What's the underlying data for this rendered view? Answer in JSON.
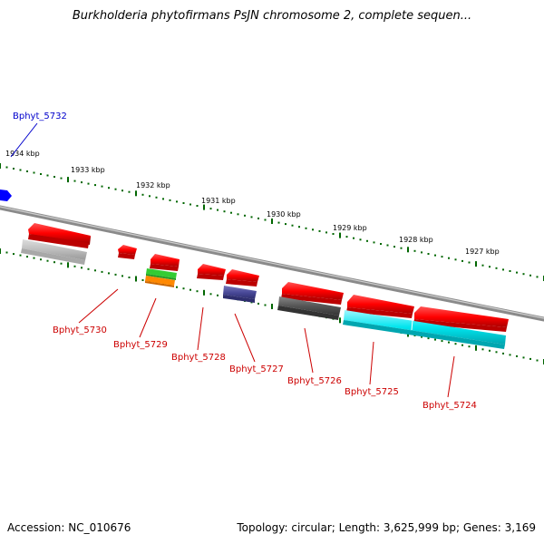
{
  "title": "Burkholderia phytofirmans PsJN chromosome 2, complete sequen...",
  "footer": {
    "accession": "Accession: NC_010676",
    "summary": "Topology: circular; Length: 3,625,999 bp; Genes: 3,169"
  },
  "scale": {
    "tick_labels": [
      "1934 kbp",
      "1933 kbp",
      "1932 kbp",
      "1931 kbp",
      "1930 kbp",
      "1929 kbp",
      "1928 kbp",
      "1927 kbp"
    ]
  },
  "genes": [
    {
      "name": "Bphyt_5732",
      "color": "#0000cc"
    },
    {
      "name": "Bphyt_5730",
      "color": "#cc0000"
    },
    {
      "name": "Bphyt_5729",
      "color": "#cc0000"
    },
    {
      "name": "Bphyt_5728",
      "color": "#cc0000"
    },
    {
      "name": "Bphyt_5727",
      "color": "#cc0000"
    },
    {
      "name": "Bphyt_5726",
      "color": "#cc0000"
    },
    {
      "name": "Bphyt_5725",
      "color": "#cc0000"
    },
    {
      "name": "Bphyt_5724",
      "color": "#cc0000"
    }
  ],
  "colors": {
    "backbone": "#888888",
    "cds_forward": "#ff0000",
    "blue_feature": "#0000ff",
    "tick_green": "#006600",
    "label_red": "#cc0000",
    "label_blue": "#0000cc",
    "cyan_feature": "#00e5ee",
    "grey_feature": "#b8b8b8",
    "darkgrey_feature": "#555555",
    "purple_feature": "#4a4a99",
    "green_feature": "#33cc33",
    "orange_feature": "#ff8800"
  }
}
